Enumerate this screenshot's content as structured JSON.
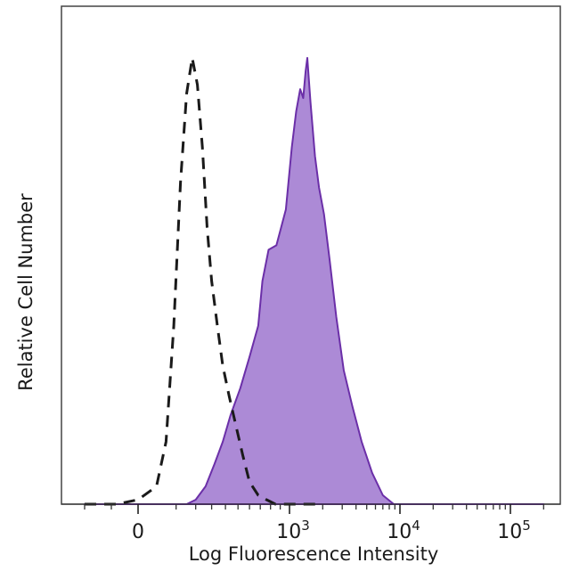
{
  "chart_data": {
    "type": "area",
    "title": "",
    "xlabel": "Log Fluorescence Intensity",
    "ylabel": "Relative Cell Number",
    "x_scale": "logicle",
    "xlim": [
      -300,
      250000
    ],
    "ylim": [
      0,
      100
    ],
    "x_ticks": [
      {
        "value": 0,
        "base": "0",
        "exp": ""
      },
      {
        "value": 1000,
        "base": "10",
        "exp": "3"
      },
      {
        "value": 10000,
        "base": "10",
        "exp": "4"
      },
      {
        "value": 100000,
        "base": "10",
        "exp": "5"
      }
    ],
    "grid": false,
    "legend": "none",
    "series": [
      {
        "style": "dashed-line",
        "color": "#1a1a1a",
        "x": [
          -200,
          -80,
          0,
          30,
          60,
          90,
          120,
          150,
          180,
          210,
          240,
          270,
          300,
          340,
          380,
          430,
          480,
          540,
          600,
          680,
          760,
          850,
          950,
          1100,
          1400,
          2000
        ],
        "y": [
          0,
          0,
          1,
          4,
          14,
          40,
          72,
          92,
          100,
          94,
          80,
          62,
          50,
          40,
          31,
          24,
          18,
          11,
          5,
          2,
          1,
          0,
          0,
          0,
          0,
          0
        ]
      },
      {
        "style": "filled-area",
        "color": "#6b2fa8",
        "fill": "#ac8ad6",
        "x": [
          -200,
          0,
          80,
          150,
          200,
          260,
          320,
          380,
          440,
          520,
          600,
          680,
          720,
          780,
          860,
          960,
          1050,
          1150,
          1250,
          1330,
          1400,
          1450,
          1550,
          1700,
          1850,
          2050,
          2300,
          2650,
          3100,
          3700,
          4500,
          5600,
          7000,
          8800,
          11000,
          15000,
          30000,
          60000,
          120000,
          200000
        ],
        "y": [
          0,
          0,
          0,
          0,
          1,
          4,
          9,
          14,
          20,
          26,
          33,
          40,
          50,
          57,
          58,
          66,
          80,
          88,
          93,
          91,
          97,
          100,
          90,
          78,
          71,
          65,
          55,
          42,
          30,
          22,
          14,
          7,
          2,
          0,
          0,
          0,
          0,
          0,
          0,
          0
        ]
      }
    ]
  }
}
